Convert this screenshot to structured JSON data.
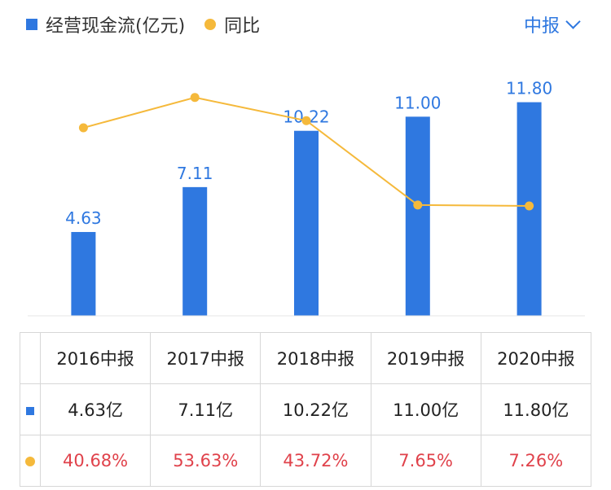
{
  "legend": {
    "bar_label": "经营现金流(亿元)",
    "line_label": "同比"
  },
  "period_selector": {
    "label": "中报"
  },
  "colors": {
    "bar": "#2f78e0",
    "line": "#f5b93b",
    "pct_text": "#e0424b",
    "accent": "#2f78e0"
  },
  "chart_data": {
    "type": "bar",
    "categories": [
      "2016中报",
      "2017中报",
      "2018中报",
      "2019中报",
      "2020中报"
    ],
    "series": [
      {
        "name": "经营现金流(亿元)",
        "type": "bar",
        "values": [
          4.63,
          7.11,
          10.22,
          11.0,
          11.8
        ],
        "labels": [
          "4.63",
          "7.11",
          "10.22",
          "11.00",
          "11.80"
        ]
      },
      {
        "name": "同比",
        "type": "line",
        "values": [
          40.68,
          53.63,
          43.72,
          7.65,
          7.26
        ]
      }
    ],
    "ylim_bar": [
      0,
      12.5
    ],
    "ylim_line": [
      -30,
      64
    ]
  },
  "table": {
    "headers": [
      "2016中报",
      "2017中报",
      "2018中报",
      "2019中报",
      "2020中报"
    ],
    "values_row": [
      "4.63亿",
      "7.11亿",
      "10.22亿",
      "11.00亿",
      "11.80亿"
    ],
    "pct_row": [
      "40.68%",
      "53.63%",
      "43.72%",
      "7.65%",
      "7.26%"
    ]
  }
}
